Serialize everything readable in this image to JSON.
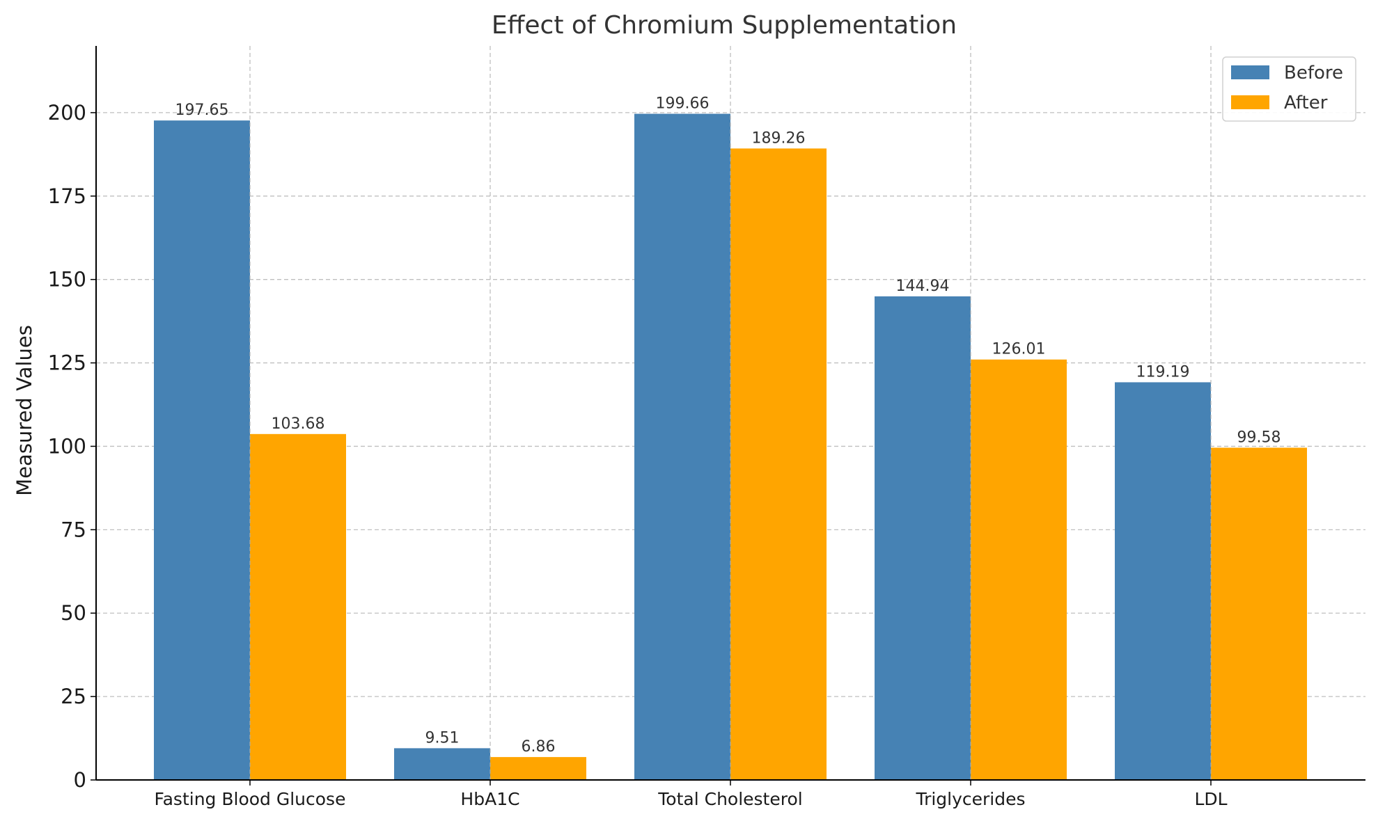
{
  "chart_data": {
    "type": "bar",
    "title": "Effect of Chromium Supplementation",
    "xlabel": "",
    "ylabel": "Measured Values",
    "categories": [
      "Fasting Blood Glucose",
      "HbA1C",
      "Total Cholesterol",
      "Triglycerides",
      "LDL"
    ],
    "series": [
      {
        "name": "Before",
        "color": "#4682B4",
        "values": [
          197.65,
          9.51,
          199.66,
          144.94,
          119.19
        ]
      },
      {
        "name": "After",
        "color": "#FFA500",
        "values": [
          103.68,
          6.86,
          189.26,
          126.01,
          99.58
        ]
      }
    ],
    "data_labels": [
      [
        "197.65",
        "9.51",
        "199.66",
        "144.94",
        "119.19"
      ],
      [
        "103.68",
        "6.86",
        "189.26",
        "126.01",
        "99.58"
      ]
    ],
    "ylim": [
      0,
      220
    ],
    "yticks": [
      0,
      25,
      50,
      75,
      100,
      125,
      150,
      175,
      200
    ],
    "ytick_labels": [
      "0",
      "25",
      "50",
      "75",
      "100",
      "125",
      "150",
      "175",
      "200"
    ],
    "grid": true,
    "legend_position": "top-right"
  }
}
